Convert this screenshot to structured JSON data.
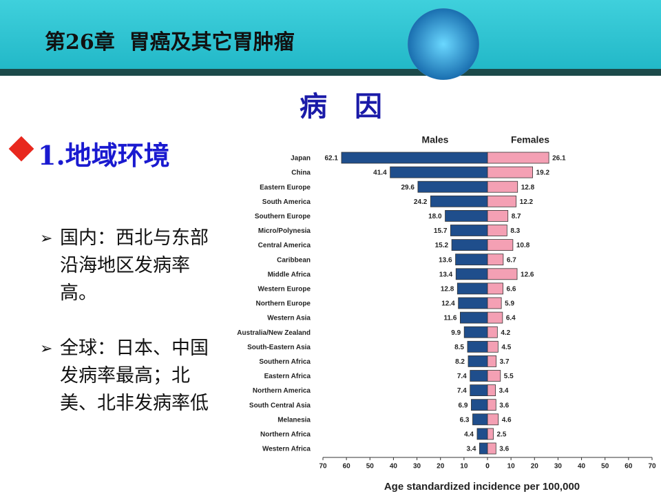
{
  "header": {
    "title": "第26章  胃癌及其它胃肿瘤"
  },
  "heading": "病　因",
  "section": "1.地域环境",
  "bullets": [
    "国内：西北与东部沿海地区发病率高。",
    "全球：日本、中国发病率最高；北美、北非发病率低"
  ],
  "chart_data": {
    "type": "butterfly-bar",
    "xlabel": "Age standardized incidence per 100,000",
    "categories": [
      "Japan",
      "China",
      "Eastern Europe",
      "South America",
      "Southern Europe",
      "Micro/Polynesia",
      "Central America",
      "Caribbean",
      "Middle Africa",
      "Western Europe",
      "Northern Europe",
      "Western Asia",
      "Australia/New Zealand",
      "South-Eastern Asia",
      "Southern Africa",
      "Eastern Africa",
      "Northern America",
      "South Central Asia",
      "Melanesia",
      "Northern Africa",
      "Western Africa"
    ],
    "series": [
      {
        "name": "Males",
        "color": "#1f4e8c",
        "side": "left",
        "values": [
          62.1,
          41.4,
          29.6,
          24.2,
          18.0,
          15.7,
          15.2,
          13.6,
          13.4,
          12.8,
          12.4,
          11.6,
          9.9,
          8.5,
          8.2,
          7.4,
          7.4,
          6.9,
          6.3,
          4.4,
          3.4
        ],
        "value_labels": [
          "62.1",
          "41.4",
          "29.6",
          "24.2",
          "18.0",
          "15.7",
          "15.2",
          "13.6",
          "13.4",
          "12.8",
          "12.4",
          "11.6",
          "9.9",
          "8.5",
          "8.2",
          "7.4",
          "7.4",
          "6.9",
          "6.3",
          "4.4",
          "3.4"
        ]
      },
      {
        "name": "Females",
        "color": "#f4a0b4",
        "side": "right",
        "values": [
          26.1,
          19.2,
          12.8,
          12.2,
          8.7,
          8.3,
          10.8,
          6.7,
          12.6,
          6.6,
          5.9,
          6.4,
          4.2,
          4.5,
          3.7,
          5.5,
          3.4,
          3.6,
          4.6,
          2.5,
          3.6
        ]
      }
    ],
    "xlim": [
      0,
      70
    ],
    "xticks": [
      0,
      10,
      20,
      30,
      40,
      50,
      60,
      70
    ]
  }
}
